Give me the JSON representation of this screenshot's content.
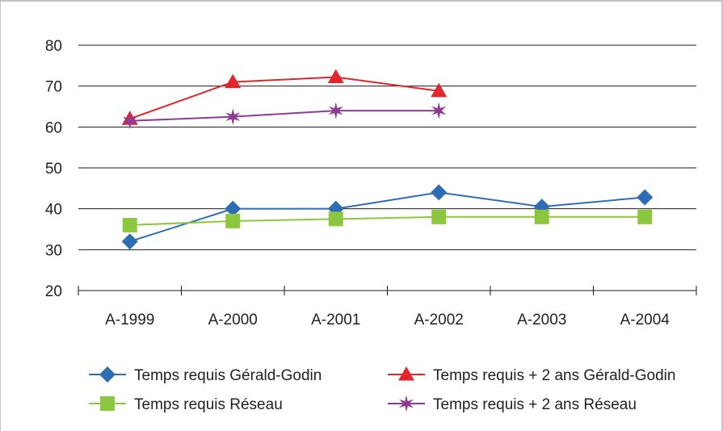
{
  "chart_data": {
    "type": "line",
    "categories": [
      "A-1999",
      "A-2000",
      "A-2001",
      "A-2002",
      "A-2003",
      "A-2004"
    ],
    "ylim": [
      20,
      80
    ],
    "yticks": [
      20,
      30,
      40,
      50,
      60,
      70,
      80
    ],
    "grid": true,
    "legend_position": "bottom",
    "series": [
      {
        "name": "Temps requis Gérald-Godin",
        "color": "#2e6db4",
        "marker": "diamond",
        "values": [
          32,
          40,
          40,
          44,
          40.5,
          42.8
        ]
      },
      {
        "name": "Temps requis + 2 ans Gérald-Godin",
        "color": "#e3262c",
        "marker": "triangle",
        "values": [
          62,
          71,
          72.2,
          68.8,
          null,
          null
        ]
      },
      {
        "name": "Temps requis Réseau",
        "color": "#8dc63f",
        "marker": "square",
        "values": [
          36,
          37,
          37.5,
          38,
          38,
          38
        ]
      },
      {
        "name": "Temps requis + 2 ans Réseau",
        "color": "#8e3a96",
        "marker": "star",
        "values": [
          61.5,
          62.5,
          64,
          64,
          null,
          null
        ]
      }
    ]
  }
}
